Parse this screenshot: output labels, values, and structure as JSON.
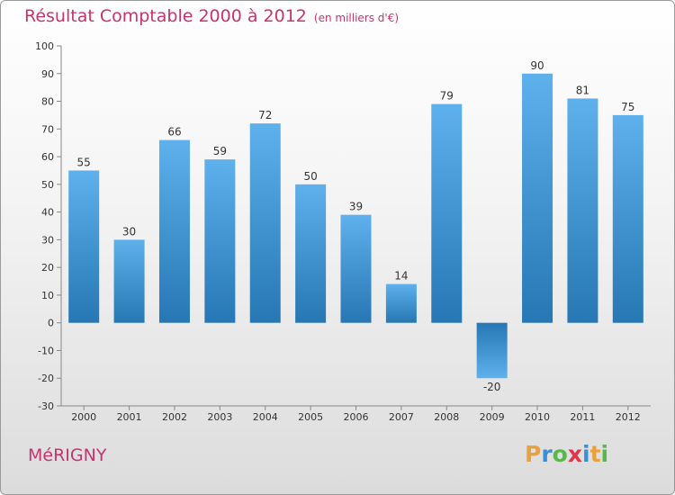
{
  "chart_data": {
    "type": "bar",
    "title": "Résultat Comptable 2000 à 2012",
    "subtitle": "(en milliers d'€)",
    "categories": [
      "2000",
      "2001",
      "2002",
      "2003",
      "2004",
      "2005",
      "2006",
      "2007",
      "2008",
      "2009",
      "2010",
      "2011",
      "2012"
    ],
    "values": [
      55,
      30,
      66,
      59,
      72,
      50,
      39,
      14,
      79,
      -20,
      90,
      81,
      75
    ],
    "ylim": [
      -30,
      100
    ],
    "yticks": [
      100,
      90,
      80,
      70,
      60,
      50,
      40,
      30,
      20,
      10,
      0,
      -10,
      -20,
      -30
    ],
    "xlabel": "",
    "ylabel": "",
    "grid": false,
    "colors": {
      "bar_light": "#5eb1ec",
      "bar_dark": "#2677b3"
    }
  },
  "place": "MéRIGNY",
  "logo": {
    "letters": [
      "P",
      "r",
      "o",
      "x",
      "i",
      "t",
      "i"
    ],
    "colors": [
      "#e8a13c",
      "#3a8fd6",
      "#56b948",
      "#e0354b",
      "#3a8fd6",
      "#e8a13c",
      "#56b948"
    ]
  },
  "colors": {
    "title": "#c8336e",
    "axis": "#888888"
  }
}
